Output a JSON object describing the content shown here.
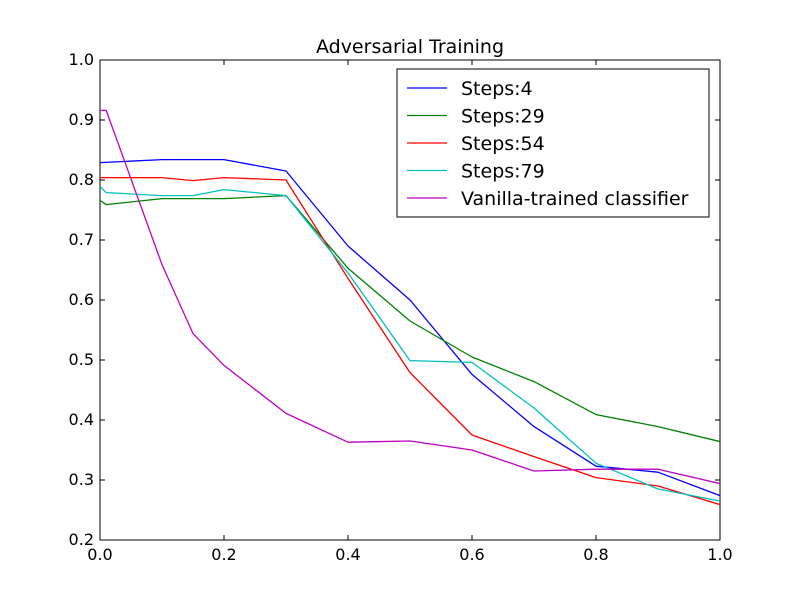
{
  "chart_data": {
    "type": "line",
    "title": "Adversarial Training",
    "xlabel": "",
    "ylabel": "",
    "xlim": [
      0.0,
      1.0
    ],
    "ylim": [
      0.2,
      1.0
    ],
    "xticks": [
      "0.0",
      "0.2",
      "0.4",
      "0.6",
      "0.8",
      "1.0"
    ],
    "yticks": [
      "0.2",
      "0.3",
      "0.4",
      "0.5",
      "0.6",
      "0.7",
      "0.8",
      "0.9",
      "1.0"
    ],
    "grid": false,
    "legend_position": "top-right",
    "series": [
      {
        "name": "Steps:4",
        "color": "#0000ff",
        "x": [
          0,
          0.1,
          0.2,
          0.3,
          0.4,
          0.5,
          0.6,
          0.7,
          0.8,
          0.9,
          1.0
        ],
        "y": [
          0.829,
          0.834,
          0.834,
          0.815,
          0.69,
          0.6,
          0.476,
          0.389,
          0.323,
          0.313,
          0.274
        ]
      },
      {
        "name": "Steps:29",
        "color": "#008000",
        "x": [
          0,
          0.01,
          0.1,
          0.2,
          0.3,
          0.4,
          0.5,
          0.6,
          0.7,
          0.8,
          0.9,
          1.0
        ],
        "y": [
          0.766,
          0.759,
          0.769,
          0.769,
          0.774,
          0.653,
          0.565,
          0.505,
          0.464,
          0.409,
          0.389,
          0.364
        ]
      },
      {
        "name": "Steps:54",
        "color": "#ff0000",
        "x": [
          0,
          0.1,
          0.15,
          0.2,
          0.3,
          0.4,
          0.5,
          0.6,
          0.7,
          0.8,
          0.9,
          1.0
        ],
        "y": [
          0.804,
          0.804,
          0.799,
          0.804,
          0.8,
          0.636,
          0.479,
          0.375,
          0.339,
          0.304,
          0.29,
          0.259
        ]
      },
      {
        "name": "Steps:79",
        "color": "#00bfbf",
        "x": [
          0,
          0.01,
          0.1,
          0.15,
          0.2,
          0.3,
          0.4,
          0.5,
          0.6,
          0.7,
          0.8,
          0.9,
          1.0
        ],
        "y": [
          0.789,
          0.779,
          0.774,
          0.774,
          0.784,
          0.774,
          0.645,
          0.499,
          0.496,
          0.42,
          0.328,
          0.285,
          0.265
        ]
      },
      {
        "name": "Vanilla-trained classifier",
        "color": "#bf00bf",
        "x": [
          0,
          0.01,
          0.1,
          0.15,
          0.2,
          0.3,
          0.4,
          0.5,
          0.6,
          0.7,
          0.8,
          0.9,
          1.0
        ],
        "y": [
          0.916,
          0.916,
          0.659,
          0.544,
          0.491,
          0.411,
          0.363,
          0.365,
          0.35,
          0.315,
          0.318,
          0.318,
          0.294
        ]
      }
    ]
  }
}
